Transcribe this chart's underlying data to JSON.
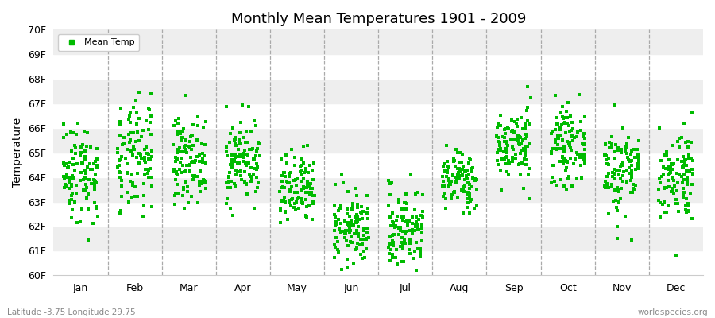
{
  "title": "Monthly Mean Temperatures 1901 - 2009",
  "ylabel": "Temperature",
  "xlabel_bottom": "Latitude -3.75 Longitude 29.75",
  "xlabel_right": "worldspecies.org",
  "legend_label": "Mean Temp",
  "marker_color": "#00bb00",
  "background_color": "#ffffff",
  "band_color": "#eeeeee",
  "ylim": [
    60,
    70
  ],
  "ytick_labels": [
    "60F",
    "61F",
    "62F",
    "63F",
    "64F",
    "65F",
    "66F",
    "67F",
    "68F",
    "69F",
    "70F"
  ],
  "months": [
    "Jan",
    "Feb",
    "Mar",
    "Apr",
    "May",
    "Jun",
    "Jul",
    "Aug",
    "Sep",
    "Oct",
    "Nov",
    "Dec"
  ],
  "monthly_means_F": [
    64.2,
    64.7,
    64.7,
    64.7,
    63.4,
    61.9,
    61.9,
    63.9,
    65.3,
    65.3,
    64.3,
    64.1
  ],
  "monthly_stds_F": [
    1.05,
    1.15,
    0.85,
    0.85,
    0.75,
    0.75,
    0.85,
    0.6,
    0.75,
    0.75,
    0.95,
    0.95
  ],
  "n_years": 109,
  "seed": 42,
  "jitter": 0.32,
  "marker_size": 6
}
